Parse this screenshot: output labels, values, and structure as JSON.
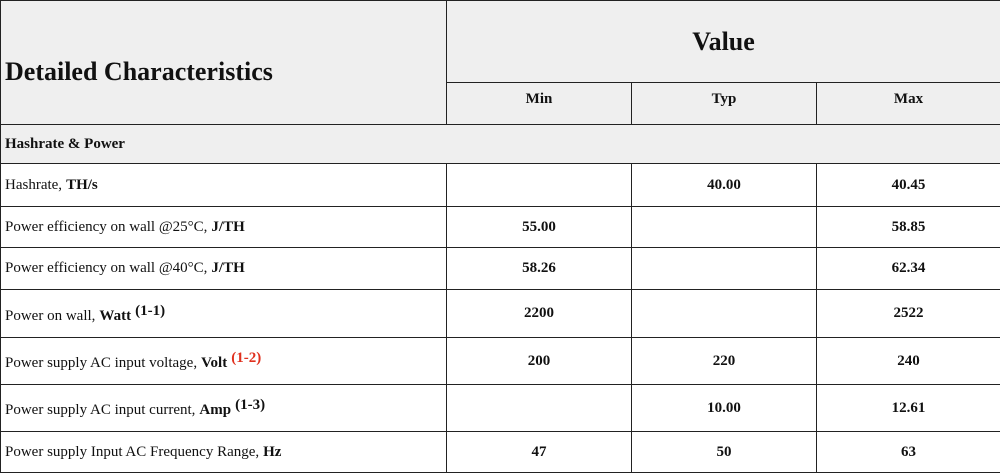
{
  "header": {
    "title": "Detailed Characteristics",
    "value": "Value",
    "columns": [
      "Min",
      "Typ",
      "Max"
    ]
  },
  "section": "Hashrate & Power",
  "rows": [
    {
      "label": "Hashrate,",
      "unit": "TH/s",
      "min": null,
      "typ": "40.00",
      "max": "40.45"
    },
    {
      "label": "Power efficiency on wall @25°C,",
      "unit": "J/TH",
      "min": "55.00",
      "typ": null,
      "max": "58.85"
    },
    {
      "label": "Power efficiency on wall @40°C,",
      "unit": "J/TH",
      "min": "58.26",
      "typ": null,
      "max": "62.34"
    },
    {
      "label": "Power on wall,",
      "unit": "Watt",
      "note": "(1-1)",
      "min": "2200",
      "typ": null,
      "max": "2522"
    },
    {
      "label": "Power supply AC input voltage,",
      "unit": "Volt",
      "note": "(1-2)",
      "note_color": "#e0301e",
      "min": "200",
      "typ": "220",
      "max": "240"
    },
    {
      "label": "Power supply AC input current,",
      "unit": "Amp",
      "note": "(1-3)",
      "min": null,
      "typ": "10.00",
      "max": "12.61"
    },
    {
      "label": "Power supply Input AC Frequency Range,",
      "unit": "Hz",
      "min": "47",
      "typ": "50",
      "max": "63"
    }
  ]
}
